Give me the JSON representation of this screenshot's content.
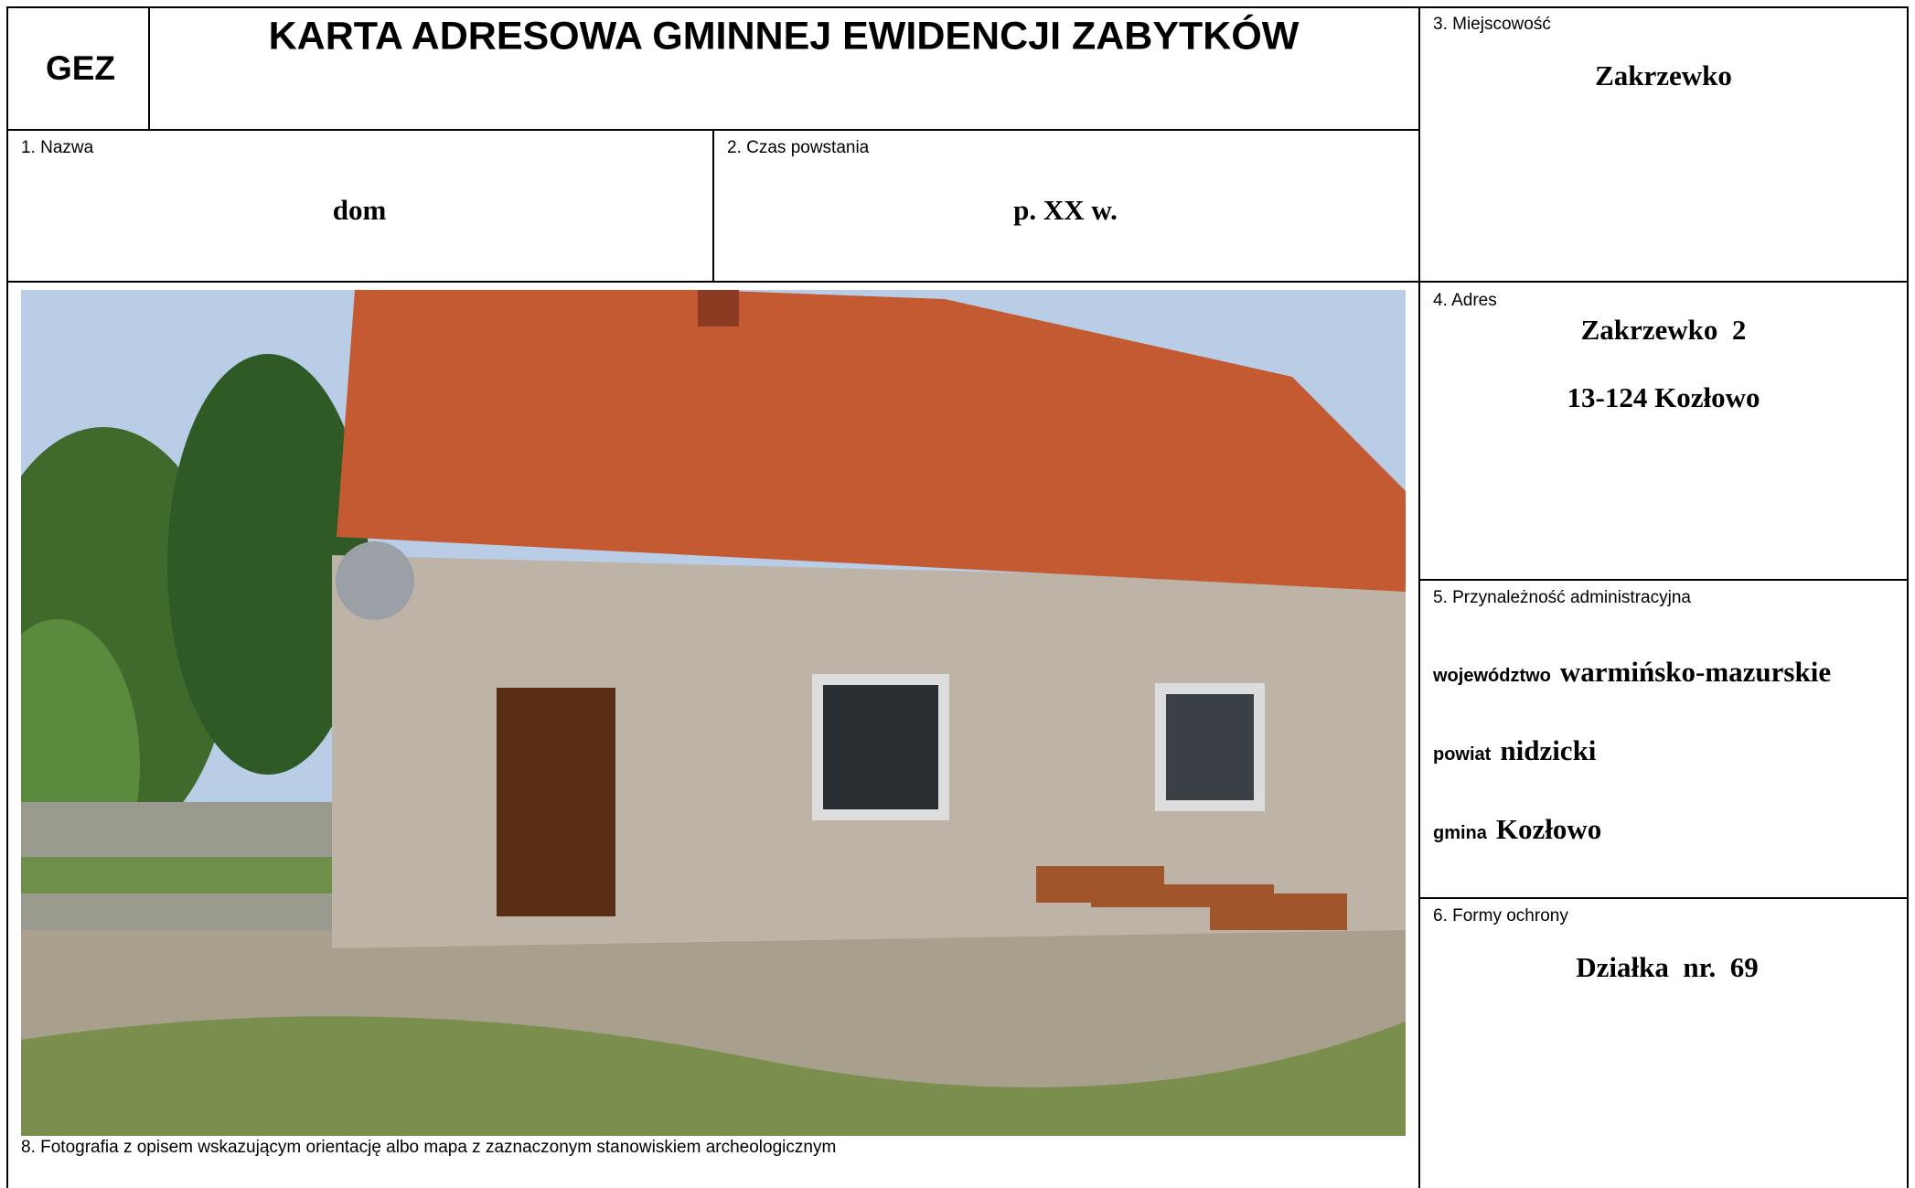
{
  "header": {
    "code": "GEZ",
    "title": "KARTA ADRESOWA GMINNEJ EWIDENCJI ZABYTKÓW"
  },
  "fields": {
    "name": {
      "label": "1. Nazwa",
      "value": "dom"
    },
    "date": {
      "label": "2. Czas powstania",
      "value": "p. XX w."
    },
    "locality": {
      "label": "3. Miejscowość",
      "value": "Zakrzewko"
    },
    "address": {
      "label": "4. Adres",
      "lines": [
        "Zakrzewko  2",
        "13-124 Kozłowo"
      ]
    },
    "admin": {
      "label": "5. Przynależność administracyjna",
      "rows": [
        {
          "key": "województwo",
          "value": "warmińsko-mazurskie"
        },
        {
          "key": "powiat",
          "value": "nidzicki"
        },
        {
          "key": "gmina",
          "value": "Kozłowo"
        }
      ]
    },
    "protection": {
      "label": "6. Formy ochrony",
      "value": "Działka  nr.  69"
    },
    "photo": {
      "caption": "8. Fotografia z opisem wskazującym orientację albo mapa z zaznaczonym stanowiskiem archeologicznym"
    }
  }
}
